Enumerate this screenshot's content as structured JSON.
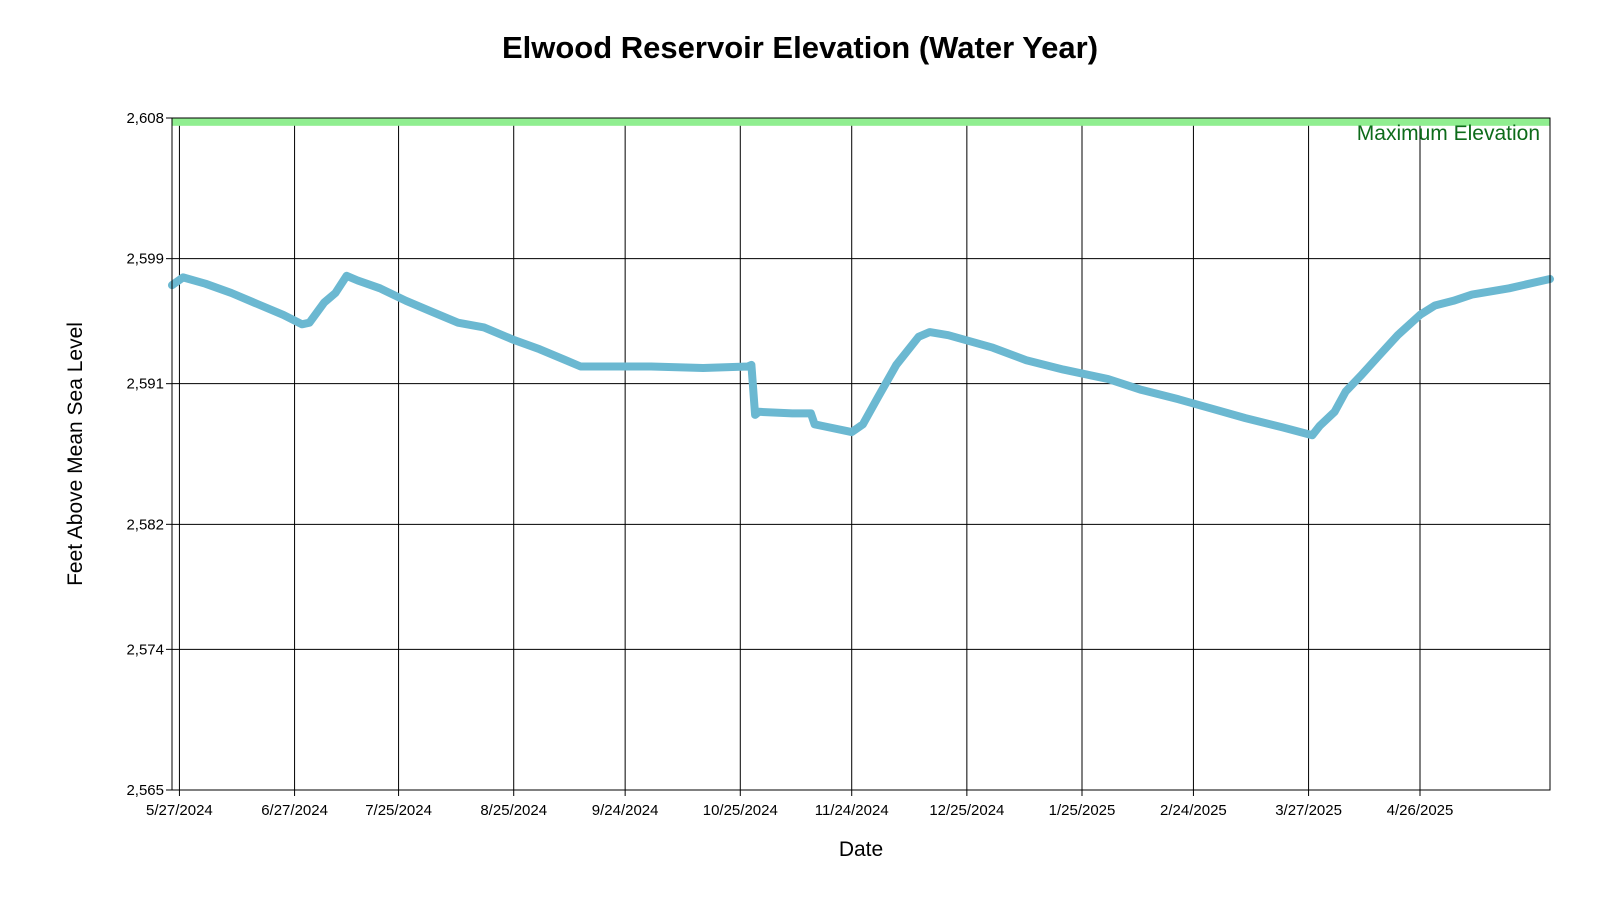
{
  "chart_data": {
    "type": "line",
    "title": "Elwood Reservoir Elevation (Water Year)",
    "xlabel": "Date",
    "ylabel": "Feet Above Mean Sea Level",
    "x_range": [
      "2024-05-25",
      "2025-05-31"
    ],
    "ylim": [
      2565,
      2608
    ],
    "y_ticks": [
      {
        "value": 2608,
        "label": "2,608"
      },
      {
        "value": 2599,
        "label": "2,599"
      },
      {
        "value": 2591,
        "label": "2,591"
      },
      {
        "value": 2582,
        "label": "2,582"
      },
      {
        "value": 2574,
        "label": "2,574"
      },
      {
        "value": 2565,
        "label": "2,565"
      }
    ],
    "x_ticks": [
      {
        "date": "2024-05-27",
        "label": "5/27/2024"
      },
      {
        "date": "2024-06-27",
        "label": "6/27/2024"
      },
      {
        "date": "2024-07-25",
        "label": "7/25/2024"
      },
      {
        "date": "2024-08-25",
        "label": "8/25/2024"
      },
      {
        "date": "2024-09-24",
        "label": "9/24/2024"
      },
      {
        "date": "2024-10-25",
        "label": "10/25/2024"
      },
      {
        "date": "2024-11-24",
        "label": "11/24/2024"
      },
      {
        "date": "2024-12-25",
        "label": "12/25/2024"
      },
      {
        "date": "2025-01-25",
        "label": "1/25/2025"
      },
      {
        "date": "2025-02-24",
        "label": "2/24/2025"
      },
      {
        "date": "2025-03-27",
        "label": "3/27/2025"
      },
      {
        "date": "2025-04-26",
        "label": "4/26/2025"
      }
    ],
    "reference_band": {
      "label": "Maximum Elevation",
      "y_from": 2607.5,
      "y_to": 2608,
      "color": "#90ee90",
      "label_color": "#0d6b1a"
    },
    "grid": true,
    "series_color": "#6bb8d1",
    "series": [
      {
        "x": [
          "2024-05-25",
          "2024-05-28",
          "2024-06-03",
          "2024-06-10",
          "2024-06-17",
          "2024-06-24",
          "2024-06-29",
          "2024-07-01",
          "2024-07-05",
          "2024-07-08",
          "2024-07-11",
          "2024-07-14",
          "2024-07-20",
          "2024-07-27",
          "2024-08-03",
          "2024-08-10",
          "2024-08-17",
          "2024-08-25",
          "2024-09-01",
          "2024-09-08",
          "2024-09-12",
          "2024-09-20",
          "2024-10-01",
          "2024-10-15",
          "2024-10-27",
          "2024-10-28",
          "2024-10-29",
          "2024-10-30",
          "2024-11-08",
          "2024-11-13",
          "2024-11-14",
          "2024-11-16",
          "2024-11-24",
          "2024-11-27",
          "2024-12-01",
          "2024-12-06",
          "2024-12-12",
          "2024-12-15",
          "2024-12-20",
          "2025-01-01",
          "2025-01-10",
          "2025-01-20",
          "2025-02-01",
          "2025-02-10",
          "2025-02-20",
          "2025-03-01",
          "2025-03-10",
          "2025-03-20",
          "2025-03-28",
          "2025-03-30",
          "2025-04-03",
          "2025-04-06",
          "2025-04-10",
          "2025-04-15",
          "2025-04-20",
          "2025-04-26",
          "2025-04-30",
          "2025-05-05",
          "2025-05-10",
          "2025-05-20",
          "2025-05-31"
        ],
        "y": [
          2597.3,
          2597.8,
          2597.4,
          2596.8,
          2596.1,
          2595.4,
          2594.8,
          2594.9,
          2596.2,
          2596.8,
          2597.9,
          2597.6,
          2597.1,
          2596.3,
          2595.6,
          2594.9,
          2594.6,
          2593.8,
          2593.2,
          2592.5,
          2592.1,
          2592.1,
          2592.1,
          2592.0,
          2592.1,
          2592.2,
          2589.0,
          2589.2,
          2589.1,
          2589.1,
          2588.4,
          2588.3,
          2587.9,
          2588.4,
          2590.1,
          2592.2,
          2594.0,
          2594.3,
          2594.1,
          2593.3,
          2592.5,
          2591.9,
          2591.3,
          2590.6,
          2590.0,
          2589.4,
          2588.8,
          2588.2,
          2587.7,
          2588.3,
          2589.2,
          2590.5,
          2591.5,
          2592.8,
          2594.1,
          2595.4,
          2596.0,
          2596.3,
          2596.7,
          2597.1,
          2597.7
        ]
      }
    ]
  }
}
